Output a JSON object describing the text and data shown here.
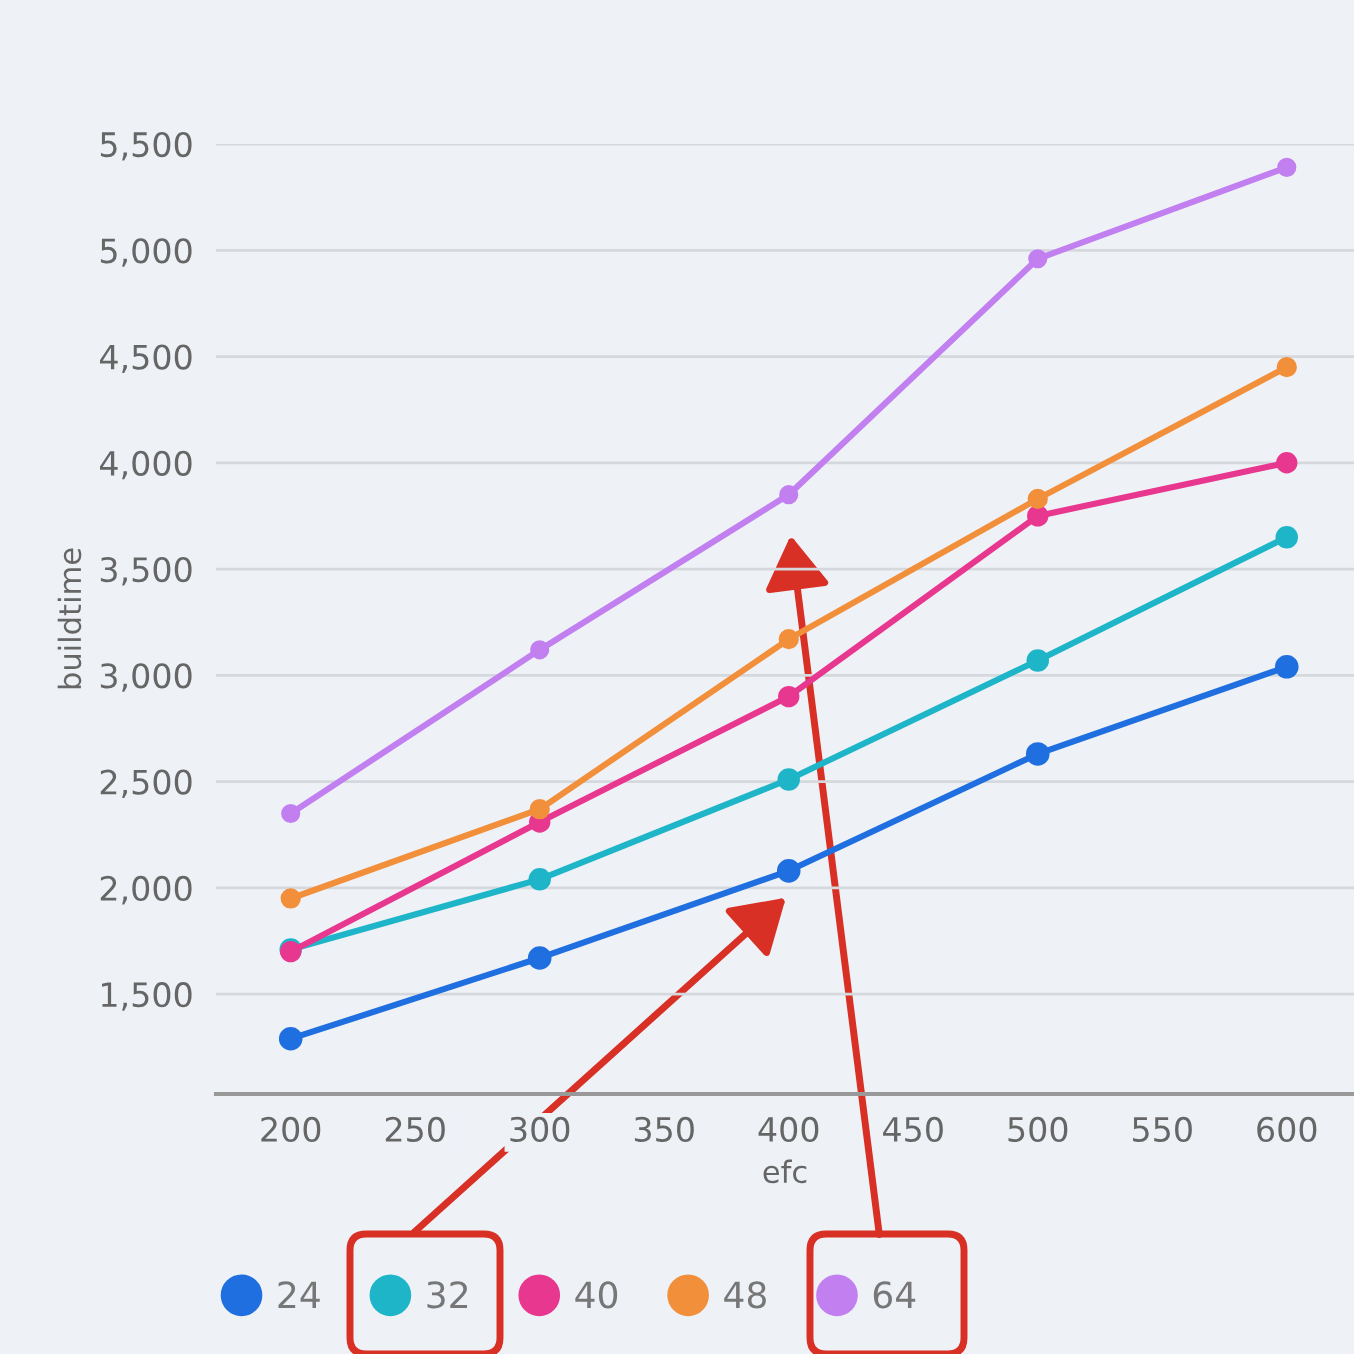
{
  "chart_data": {
    "type": "line",
    "xlabel": "efc",
    "ylabel": "buildtime",
    "x": [
      200,
      300,
      400,
      500,
      600
    ],
    "series": [
      {
        "name": "24",
        "color": "#1f6fe0",
        "values": [
          1290,
          1670,
          2080,
          2630,
          3040
        ]
      },
      {
        "name": "32",
        "color": "#1fb5c8",
        "values": [
          1710,
          2040,
          2510,
          3070,
          3650
        ]
      },
      {
        "name": "40",
        "color": "#e8378f",
        "values": [
          1700,
          2310,
          2900,
          3750,
          4000
        ]
      },
      {
        "name": "48",
        "color": "#f28f3b",
        "values": [
          1950,
          2370,
          3170,
          3830,
          4450
        ]
      },
      {
        "name": "64",
        "color": "#c17ff0",
        "values": [
          2350,
          3120,
          3850,
          4960,
          5390
        ]
      }
    ],
    "xlim": [
      170,
      627
    ],
    "ylim": [
      1030,
      5500
    ],
    "xticks": [
      200,
      250,
      300,
      350,
      400,
      450,
      500,
      550,
      600
    ],
    "yticks": [
      {
        "value": 1500,
        "label": "1,500"
      },
      {
        "value": 2000,
        "label": "2,000"
      },
      {
        "value": 2500,
        "label": "2,500"
      },
      {
        "value": 3000,
        "label": "3,000"
      },
      {
        "value": 3500,
        "label": "3,500"
      },
      {
        "value": 4000,
        "label": "4,000"
      },
      {
        "value": 4500,
        "label": "4,500"
      },
      {
        "value": 5000,
        "label": "5,000"
      },
      {
        "value": 5500,
        "label": "5,500"
      }
    ],
    "grid": "y",
    "legend": "bottom",
    "marker": "circle",
    "line_style": "solid"
  }
}
